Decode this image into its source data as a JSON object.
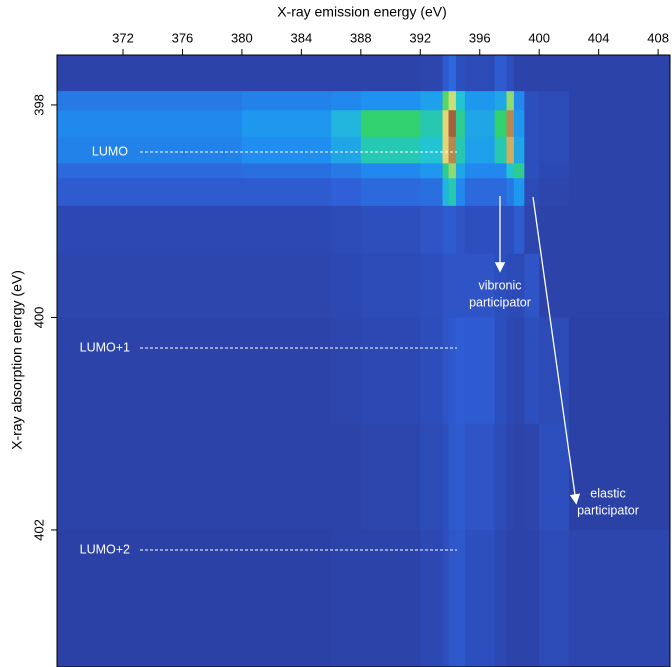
{
  "chart_data": {
    "type": "heatmap",
    "x_label": "X-ray emission energy (eV)",
    "y_label": "X-ray absorption energy (eV)",
    "xlim": [
      367.56,
      408.8
    ],
    "ylim": [
      397.53,
      403.29
    ],
    "y_reversed": true,
    "xticks": [
      372,
      376,
      380,
      384,
      388,
      392,
      396,
      400,
      404,
      408
    ],
    "yticks": [
      398,
      400,
      402
    ],
    "colormap": [
      "#2a3896",
      "#2f5fd8",
      "#1e92f2",
      "#22c4d4",
      "#34d264",
      "#ece27a",
      "#a2603e"
    ],
    "xbins": [
      367.56,
      380,
      386,
      388,
      392,
      393.5,
      393.9,
      394.4,
      395,
      397,
      397.8,
      398.3,
      399,
      400,
      402,
      408.8
    ],
    "ybins": [
      397.53,
      397.87,
      398.05,
      398.3,
      398.55,
      398.69,
      398.95,
      399.4,
      400,
      401,
      402,
      403.29
    ],
    "values": [
      [
        0.05,
        0.05,
        0.05,
        0.05,
        0.06,
        0.15,
        0.2,
        0.1,
        0.08,
        0.15,
        0.1,
        0.05,
        0.05,
        0.05,
        0.05
      ],
      [
        0.25,
        0.28,
        0.3,
        0.33,
        0.38,
        0.7,
        0.8,
        0.5,
        0.35,
        0.4,
        0.75,
        0.3,
        0.1,
        0.08,
        0.05
      ],
      [
        0.3,
        0.35,
        0.45,
        0.65,
        0.55,
        0.85,
        1.0,
        0.6,
        0.4,
        0.65,
        0.95,
        0.35,
        0.1,
        0.08,
        0.05
      ],
      [
        0.28,
        0.32,
        0.4,
        0.55,
        0.5,
        0.85,
        0.95,
        0.55,
        0.38,
        0.55,
        0.9,
        0.4,
        0.1,
        0.08,
        0.05
      ],
      [
        0.2,
        0.22,
        0.25,
        0.3,
        0.35,
        0.6,
        0.75,
        0.4,
        0.3,
        0.3,
        0.5,
        0.6,
        0.1,
        0.07,
        0.05
      ],
      [
        0.15,
        0.15,
        0.17,
        0.2,
        0.22,
        0.45,
        0.55,
        0.3,
        0.2,
        0.2,
        0.25,
        0.35,
        0.08,
        0.06,
        0.05
      ],
      [
        0.07,
        0.07,
        0.08,
        0.1,
        0.12,
        0.15,
        0.15,
        0.12,
        0.1,
        0.1,
        0.1,
        0.15,
        0.06,
        0.05,
        0.05
      ],
      [
        0.06,
        0.06,
        0.07,
        0.08,
        0.1,
        0.12,
        0.12,
        0.12,
        0.12,
        0.1,
        0.08,
        0.08,
        0.12,
        0.05,
        0.05
      ],
      [
        0.05,
        0.05,
        0.06,
        0.07,
        0.09,
        0.12,
        0.14,
        0.16,
        0.15,
        0.1,
        0.07,
        0.06,
        0.1,
        0.08,
        0.04
      ],
      [
        0.05,
        0.05,
        0.05,
        0.06,
        0.08,
        0.1,
        0.14,
        0.15,
        0.12,
        0.08,
        0.06,
        0.05,
        0.06,
        0.1,
        0.04
      ],
      [
        0.04,
        0.04,
        0.05,
        0.05,
        0.07,
        0.1,
        0.13,
        0.14,
        0.1,
        0.07,
        0.05,
        0.05,
        0.05,
        0.08,
        0.06
      ]
    ],
    "level_labels": [
      "LUMO",
      "LUMO+1",
      "LUMO+2"
    ],
    "annotations": [
      [
        "vibronic",
        "participator"
      ],
      [
        "elastic",
        "participator"
      ]
    ]
  }
}
